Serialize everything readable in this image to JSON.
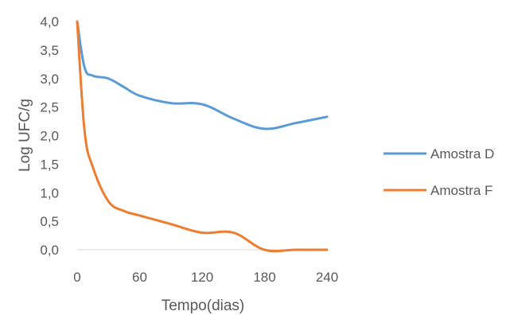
{
  "chart_data": {
    "type": "line",
    "xlabel": "Tempo(dias)",
    "ylabel": "Log UFC/g",
    "xlim": [
      0,
      240
    ],
    "ylim": [
      0,
      4
    ],
    "x_ticks": [
      0,
      60,
      120,
      180,
      240
    ],
    "x_tick_labels": [
      "0",
      "60",
      "120",
      "180",
      "240"
    ],
    "y_ticks": [
      0,
      0.5,
      1,
      1.5,
      2,
      2.5,
      3,
      3.5,
      4
    ],
    "y_tick_labels": [
      "0,0",
      "0,5",
      "1,0",
      "1,5",
      "2,0",
      "2,5",
      "3,0",
      "3,5",
      "4,0"
    ],
    "grid": false,
    "legend_position": "right",
    "series": [
      {
        "name": "Amostra D",
        "color": "#5b9bd5",
        "x": [
          0,
          7,
          15,
          30,
          45,
          60,
          90,
          120,
          150,
          180,
          210,
          240
        ],
        "y": [
          4.0,
          3.2,
          3.05,
          3.0,
          2.85,
          2.7,
          2.57,
          2.55,
          2.3,
          2.12,
          2.22,
          2.33
        ]
      },
      {
        "name": "Amostra F",
        "color": "#ed7d31",
        "x": [
          0,
          7,
          15,
          30,
          45,
          60,
          90,
          120,
          150,
          180,
          210,
          240
        ],
        "y": [
          4.0,
          2.1,
          1.45,
          0.85,
          0.68,
          0.6,
          0.45,
          0.3,
          0.3,
          0.0,
          0.0,
          0.0
        ]
      }
    ]
  }
}
